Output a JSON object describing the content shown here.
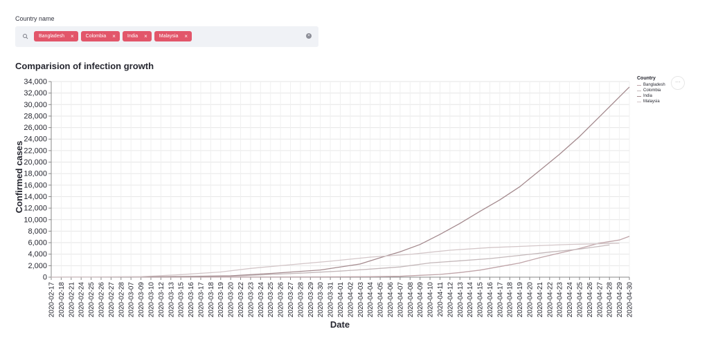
{
  "filter": {
    "label": "Country name",
    "chips": [
      "Bangladesh",
      "Colombia",
      "India",
      "Malaysia"
    ],
    "remove_glyph": "×",
    "clear_glyph": "×",
    "search_icon": "search-icon",
    "accent_color": "#e2566a"
  },
  "more_button": "···",
  "chart_data": {
    "type": "line",
    "title": "Comparision of infection growth",
    "xlabel": "Date",
    "ylabel": "Confirmed cases",
    "ylim": [
      0,
      34000
    ],
    "y_ticks": [
      0,
      2000,
      4000,
      6000,
      8000,
      10000,
      12000,
      14000,
      16000,
      18000,
      20000,
      22000,
      24000,
      26000,
      28000,
      30000,
      32000,
      34000
    ],
    "grid": true,
    "legend_title": "Country",
    "legend_position": "right",
    "x_ticks": [
      "2020-02-17",
      "2020-02-18",
      "2020-02-21",
      "2020-02-24",
      "2020-02-25",
      "2020-02-26",
      "2020-02-27",
      "2020-02-28",
      "2020-03-07",
      "2020-03-09",
      "2020-03-10",
      "2020-03-12",
      "2020-03-13",
      "2020-03-15",
      "2020-03-16",
      "2020-03-17",
      "2020-03-18",
      "2020-03-19",
      "2020-03-20",
      "2020-03-22",
      "2020-03-23",
      "2020-03-24",
      "2020-03-25",
      "2020-03-26",
      "2020-03-27",
      "2020-03-28",
      "2020-03-29",
      "2020-03-30",
      "2020-03-31",
      "2020-04-01",
      "2020-04-02",
      "2020-04-03",
      "2020-04-04",
      "2020-04-05",
      "2020-04-06",
      "2020-04-07",
      "2020-04-08",
      "2020-04-09",
      "2020-04-10",
      "2020-04-11",
      "2020-04-12",
      "2020-04-13",
      "2020-04-14",
      "2020-04-15",
      "2020-04-16",
      "2020-04-17",
      "2020-04-18",
      "2020-04-19",
      "2020-04-20",
      "2020-04-21",
      "2020-04-22",
      "2020-04-23",
      "2020-04-24",
      "2020-04-25",
      "2020-04-26",
      "2020-04-27",
      "2020-04-28",
      "2020-04-29",
      "2020-04-30"
    ],
    "series": [
      {
        "name": "Bangladesh",
        "color": "#bfa4a8",
        "x": [
          "2020-03-09",
          "2020-03-20",
          "2020-03-30",
          "2020-04-04",
          "2020-04-07",
          "2020-04-09",
          "2020-04-11",
          "2020-04-13",
          "2020-04-15",
          "2020-04-17",
          "2020-04-19",
          "2020-04-21",
          "2020-04-23",
          "2020-04-25",
          "2020-04-27",
          "2020-04-29",
          "2020-04-30"
        ],
        "y": [
          0,
          20,
          50,
          90,
          160,
          330,
          480,
          800,
          1230,
          1840,
          2460,
          3380,
          4190,
          4990,
          5910,
          6460,
          7100
        ]
      },
      {
        "name": "Colombia",
        "color": "#c4b8ba",
        "x": [
          "2020-03-07",
          "2020-03-16",
          "2020-03-22",
          "2020-03-28",
          "2020-04-01",
          "2020-04-04",
          "2020-04-07",
          "2020-04-10",
          "2020-04-13",
          "2020-04-16",
          "2020-04-19",
          "2020-04-22",
          "2020-04-25",
          "2020-04-28"
        ],
        "y": [
          0,
          50,
          240,
          700,
          1060,
          1400,
          1780,
          2470,
          2850,
          3230,
          3790,
          4360,
          4880,
          5600
        ]
      },
      {
        "name": "India",
        "color": "#a48a8e",
        "x": [
          "2020-02-17",
          "2020-03-12",
          "2020-03-20",
          "2020-03-25",
          "2020-03-30",
          "2020-04-03",
          "2020-04-05",
          "2020-04-07",
          "2020-04-09",
          "2020-04-11",
          "2020-04-13",
          "2020-04-15",
          "2020-04-17",
          "2020-04-19",
          "2020-04-21",
          "2020-04-23",
          "2020-04-25",
          "2020-04-27",
          "2020-04-29",
          "2020-04-30"
        ],
        "y": [
          0,
          70,
          240,
          650,
          1250,
          2300,
          3370,
          4420,
          5680,
          7440,
          9350,
          11440,
          13430,
          15710,
          18540,
          21370,
          24450,
          27890,
          31330,
          33050
        ]
      },
      {
        "name": "Malaysia",
        "color": "#d3c6c8",
        "x": [
          "2020-02-17",
          "2020-03-09",
          "2020-03-15",
          "2020-03-19",
          "2020-03-23",
          "2020-03-27",
          "2020-03-31",
          "2020-04-04",
          "2020-04-08",
          "2020-04-12",
          "2020-04-16",
          "2020-04-20",
          "2020-04-24",
          "2020-04-28",
          "2020-04-29"
        ],
        "y": [
          0,
          100,
          440,
          900,
          1520,
          2160,
          2770,
          3480,
          3970,
          4680,
          5140,
          5420,
          5690,
          5850,
          5900
        ]
      }
    ]
  }
}
